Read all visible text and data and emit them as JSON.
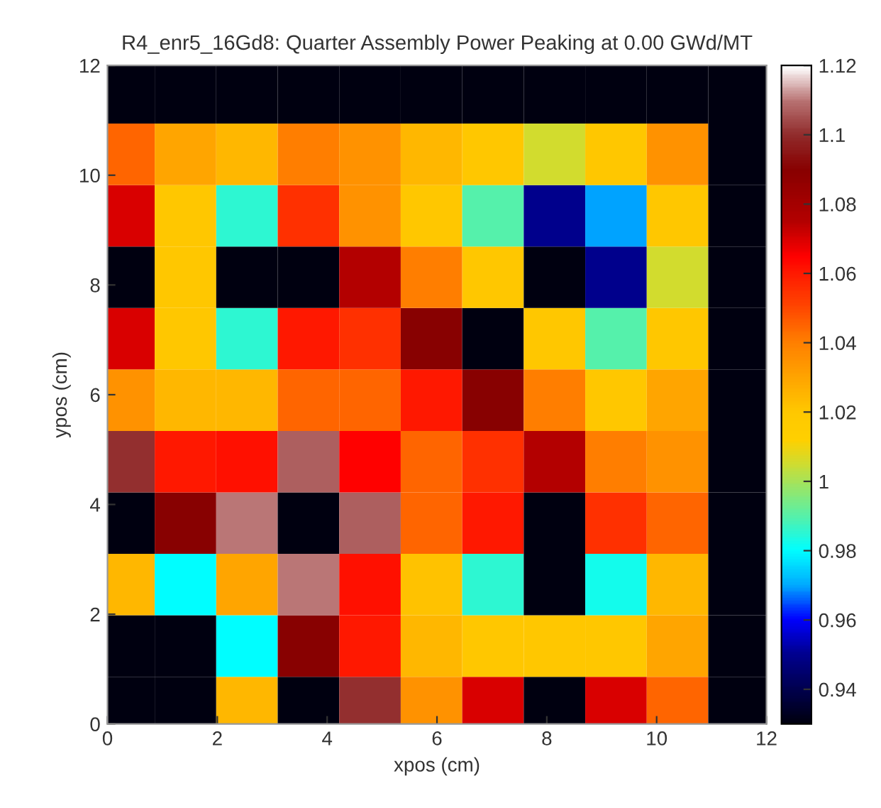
{
  "chart_data": {
    "type": "heatmap",
    "title": "R4_enr5_16Gd8: Quarter Assembly Power Peaking at 0.00 GWd/MT",
    "xlabel": "xpos (cm)",
    "ylabel": "ypos (cm)",
    "x": [
      0.3,
      1.42,
      2.54,
      3.66,
      4.78,
      5.9,
      7.02,
      8.14,
      9.26,
      10.38,
      11.5
    ],
    "y": [
      11.5,
      10.38,
      9.26,
      8.14,
      7.02,
      5.9,
      4.78,
      3.66,
      2.54,
      1.42,
      0.3
    ],
    "cells": [
      [
        0.93,
        0.93,
        0.93,
        0.93,
        0.93,
        0.93,
        0.93,
        0.93,
        0.93,
        0.93,
        0.93
      ],
      [
        1.045,
        1.03,
        1.025,
        1.04,
        1.035,
        1.025,
        1.02,
        1.005,
        1.02,
        1.035,
        0.93
      ],
      [
        1.07,
        1.02,
        0.985,
        1.055,
        1.035,
        1.02,
        0.99,
        0.95,
        0.97,
        1.02,
        0.93
      ],
      [
        0.93,
        1.02,
        0.93,
        0.93,
        1.075,
        1.04,
        1.02,
        0.93,
        0.95,
        1.005,
        0.93
      ],
      [
        1.07,
        1.02,
        0.985,
        1.06,
        1.055,
        1.09,
        0.93,
        1.02,
        0.99,
        1.02,
        0.93
      ],
      [
        1.035,
        1.025,
        1.025,
        1.045,
        1.045,
        1.06,
        1.09,
        1.04,
        1.02,
        1.03,
        0.93
      ],
      [
        1.1,
        1.06,
        1.062,
        1.107,
        1.065,
        1.045,
        1.055,
        1.075,
        1.04,
        1.035,
        0.93
      ],
      [
        0.93,
        1.09,
        1.11,
        0.93,
        1.107,
        1.045,
        1.06,
        0.93,
        1.055,
        1.045,
        0.93
      ],
      [
        1.025,
        0.98,
        1.03,
        1.11,
        1.062,
        1.022,
        0.985,
        0.93,
        0.982,
        1.025,
        0.93
      ],
      [
        0.93,
        0.93,
        0.98,
        1.09,
        1.06,
        1.025,
        1.02,
        1.02,
        1.02,
        1.03,
        0.93
      ],
      [
        0.93,
        0.93,
        1.025,
        0.93,
        1.1,
        1.035,
        1.07,
        0.93,
        1.07,
        1.045,
        0.93
      ]
    ],
    "xlim": [
      0,
      12
    ],
    "xticks": [
      0,
      2,
      4,
      6,
      8,
      10,
      12
    ],
    "ylim": [
      0,
      12
    ],
    "yticks": [
      0,
      2,
      4,
      6,
      8,
      10,
      12
    ],
    "clim": [
      0.93,
      1.12
    ],
    "cticks": [
      0.94,
      0.96,
      0.98,
      1,
      1.02,
      1.04,
      1.06,
      1.08,
      1.1,
      1.12
    ],
    "grid": false
  }
}
